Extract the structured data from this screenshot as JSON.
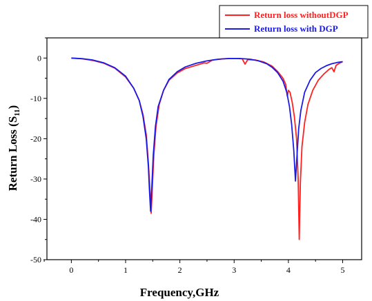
{
  "chart_data": {
    "type": "line",
    "title": "",
    "xlabel": "Frequency,GHz",
    "ylabel_main": "Return Loss (S",
    "ylabel_sub": "11",
    "ylabel_close": ")",
    "xlim": [
      -0.45,
      5.35
    ],
    "ylim": [
      -50,
      5
    ],
    "xticks": [
      0,
      1,
      2,
      3,
      4,
      5
    ],
    "yticks": [
      0,
      -10,
      -20,
      -30,
      -40,
      -50
    ],
    "grid": false,
    "legend_position": "top-right",
    "series": [
      {
        "name": "Return loss withoutDGP",
        "color": "#ff2020",
        "points": [
          [
            0,
            0
          ],
          [
            0.2,
            -0.2
          ],
          [
            0.4,
            -0.6
          ],
          [
            0.6,
            -1.3
          ],
          [
            0.8,
            -2.5
          ],
          [
            1.0,
            -4.7
          ],
          [
            1.15,
            -7.5
          ],
          [
            1.25,
            -10.5
          ],
          [
            1.32,
            -14
          ],
          [
            1.38,
            -19
          ],
          [
            1.42,
            -26
          ],
          [
            1.45,
            -33
          ],
          [
            1.47,
            -38.5
          ],
          [
            1.49,
            -33
          ],
          [
            1.52,
            -24
          ],
          [
            1.56,
            -17
          ],
          [
            1.62,
            -11.5
          ],
          [
            1.7,
            -8
          ],
          [
            1.8,
            -5.5
          ],
          [
            1.95,
            -3.7
          ],
          [
            2.1,
            -2.6
          ],
          [
            2.3,
            -1.8
          ],
          [
            2.45,
            -1.2
          ],
          [
            2.5,
            -1.3
          ],
          [
            2.6,
            -0.5
          ],
          [
            2.8,
            -0.2
          ],
          [
            3.0,
            -0.1
          ],
          [
            3.15,
            -0.2
          ],
          [
            3.2,
            -1.5
          ],
          [
            3.25,
            -0.4
          ],
          [
            3.4,
            -0.5
          ],
          [
            3.55,
            -1.0
          ],
          [
            3.7,
            -2.0
          ],
          [
            3.8,
            -3.3
          ],
          [
            3.9,
            -5.0
          ],
          [
            3.95,
            -6.5
          ],
          [
            3.98,
            -9.5
          ],
          [
            4.0,
            -8.0
          ],
          [
            4.03,
            -8.5
          ],
          [
            4.07,
            -11
          ],
          [
            4.11,
            -14.5
          ],
          [
            4.15,
            -20
          ],
          [
            4.18,
            -30
          ],
          [
            4.2,
            -45
          ],
          [
            4.22,
            -31
          ],
          [
            4.25,
            -22
          ],
          [
            4.3,
            -16
          ],
          [
            4.36,
            -11.5
          ],
          [
            4.45,
            -8
          ],
          [
            4.55,
            -5.5
          ],
          [
            4.65,
            -4
          ],
          [
            4.75,
            -2.8
          ],
          [
            4.8,
            -2.4
          ],
          [
            4.84,
            -3.4
          ],
          [
            4.88,
            -1.8
          ],
          [
            4.95,
            -1.2
          ],
          [
            5.0,
            -0.9
          ]
        ]
      },
      {
        "name": "Return loss with DGP",
        "color": "#1a1ae6",
        "points": [
          [
            0,
            0
          ],
          [
            0.2,
            -0.15
          ],
          [
            0.4,
            -0.5
          ],
          [
            0.6,
            -1.2
          ],
          [
            0.8,
            -2.4
          ],
          [
            1.0,
            -4.5
          ],
          [
            1.15,
            -7.5
          ],
          [
            1.25,
            -10.5
          ],
          [
            1.32,
            -14.5
          ],
          [
            1.38,
            -20
          ],
          [
            1.42,
            -27
          ],
          [
            1.44,
            -33
          ],
          [
            1.46,
            -38
          ],
          [
            1.48,
            -33
          ],
          [
            1.51,
            -24
          ],
          [
            1.55,
            -17
          ],
          [
            1.6,
            -12
          ],
          [
            1.7,
            -8
          ],
          [
            1.8,
            -5.3
          ],
          [
            1.95,
            -3.4
          ],
          [
            2.1,
            -2.2
          ],
          [
            2.3,
            -1.3
          ],
          [
            2.5,
            -0.7
          ],
          [
            2.7,
            -0.3
          ],
          [
            2.9,
            -0.1
          ],
          [
            3.1,
            -0.1
          ],
          [
            3.3,
            -0.3
          ],
          [
            3.45,
            -0.7
          ],
          [
            3.6,
            -1.4
          ],
          [
            3.7,
            -2.3
          ],
          [
            3.8,
            -3.6
          ],
          [
            3.9,
            -5.7
          ],
          [
            3.97,
            -8.5
          ],
          [
            4.02,
            -12
          ],
          [
            4.06,
            -16.5
          ],
          [
            4.1,
            -23
          ],
          [
            4.13,
            -30.5
          ],
          [
            4.16,
            -24
          ],
          [
            4.19,
            -17.5
          ],
          [
            4.23,
            -13
          ],
          [
            4.3,
            -8.5
          ],
          [
            4.4,
            -5.5
          ],
          [
            4.5,
            -3.6
          ],
          [
            4.6,
            -2.6
          ],
          [
            4.7,
            -1.9
          ],
          [
            4.8,
            -1.4
          ],
          [
            4.9,
            -1.1
          ],
          [
            5.0,
            -0.9
          ]
        ]
      }
    ]
  }
}
